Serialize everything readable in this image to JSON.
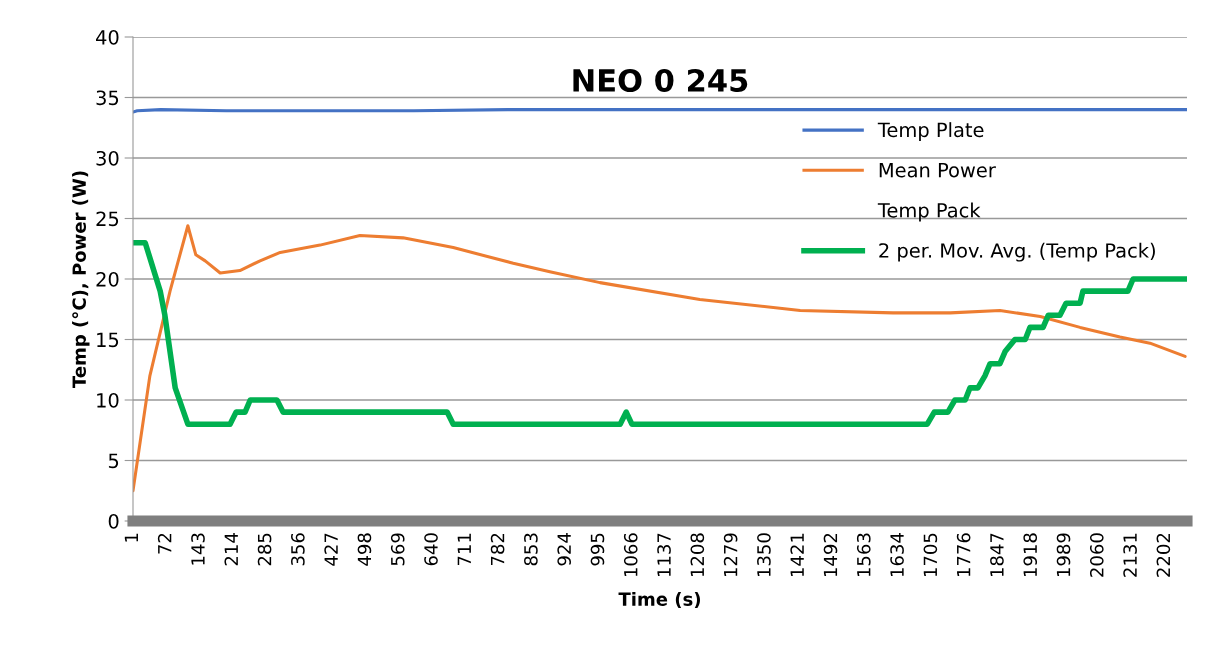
{
  "chart_data": {
    "type": "line",
    "title": "NEO 0 245",
    "xlabel": "Time (s)",
    "ylabel": "Temp (°C), Power (W)",
    "xlim": [
      1,
      2249
    ],
    "ylim": [
      0,
      40
    ],
    "yticks": [
      0,
      5,
      10,
      15,
      20,
      25,
      30,
      35,
      40
    ],
    "xticks": [
      1,
      72,
      143,
      214,
      285,
      356,
      427,
      498,
      569,
      640,
      711,
      782,
      853,
      924,
      995,
      1066,
      1137,
      1208,
      1279,
      1350,
      1421,
      1492,
      1563,
      1634,
      1705,
      1776,
      1847,
      1918,
      1989,
      2060,
      2131,
      2202
    ],
    "grid": "y",
    "legend": "right",
    "marker": "none",
    "series": [
      {
        "name": "Temp Plate",
        "color": "#4472c4",
        "line_style": "solid",
        "x": [
          1,
          10,
          60,
          200,
          400,
          600,
          800,
          1000,
          1200,
          1400,
          1600,
          1800,
          2000,
          2249
        ],
        "values": [
          33.8,
          33.9,
          34.0,
          33.9,
          33.9,
          33.9,
          34.0,
          34.0,
          34.0,
          34.0,
          34.0,
          34.0,
          34.0,
          34.0
        ]
      },
      {
        "name": "Mean Power",
        "color": "#ed7d31",
        "line_style": "solid",
        "x": [
          1,
          37,
          80,
          118,
          135,
          155,
          187,
          229,
          272,
          315,
          400,
          485,
          577,
          684,
          812,
          890,
          997,
          1210,
          1424,
          1622,
          1744,
          1850,
          1936,
          2021,
          2106,
          2170,
          2245
        ],
        "values": [
          2.5,
          12,
          19,
          24.4,
          22,
          21.5,
          20.5,
          20.7,
          21.5,
          22.2,
          22.8,
          23.6,
          23.4,
          22.6,
          21.3,
          20.6,
          19.7,
          18.3,
          17.4,
          17.2,
          17.2,
          17.4,
          16.9,
          16.0,
          15.2,
          14.7,
          13.6
        ]
      },
      {
        "name": "Temp Pack",
        "line_style": "none"
      },
      {
        "name": "2 per. Mov. Avg. (Temp Pack)",
        "color": "#00b050",
        "line_style": "solid",
        "x": [
          1,
          27,
          59,
          69,
          91,
          118,
          208,
          221,
          240,
          251,
          308,
          321,
          671,
          684,
          1040,
          1053,
          1065,
          1695,
          1710,
          1739,
          1754,
          1776,
          1786,
          1803,
          1818,
          1829,
          1850,
          1861,
          1882,
          1904,
          1914,
          1942,
          1953,
          1978,
          1991,
          2021,
          2027,
          2123,
          2134,
          2249
        ],
        "values": [
          23,
          23,
          19,
          17,
          11,
          8,
          8,
          9,
          9,
          10,
          10,
          9,
          9,
          8,
          8,
          9,
          8,
          8,
          9,
          9,
          10,
          10,
          11,
          11,
          12,
          13,
          13,
          14,
          15,
          15,
          16,
          16,
          17,
          17,
          18,
          18,
          19,
          19,
          20,
          20
        ]
      }
    ]
  }
}
